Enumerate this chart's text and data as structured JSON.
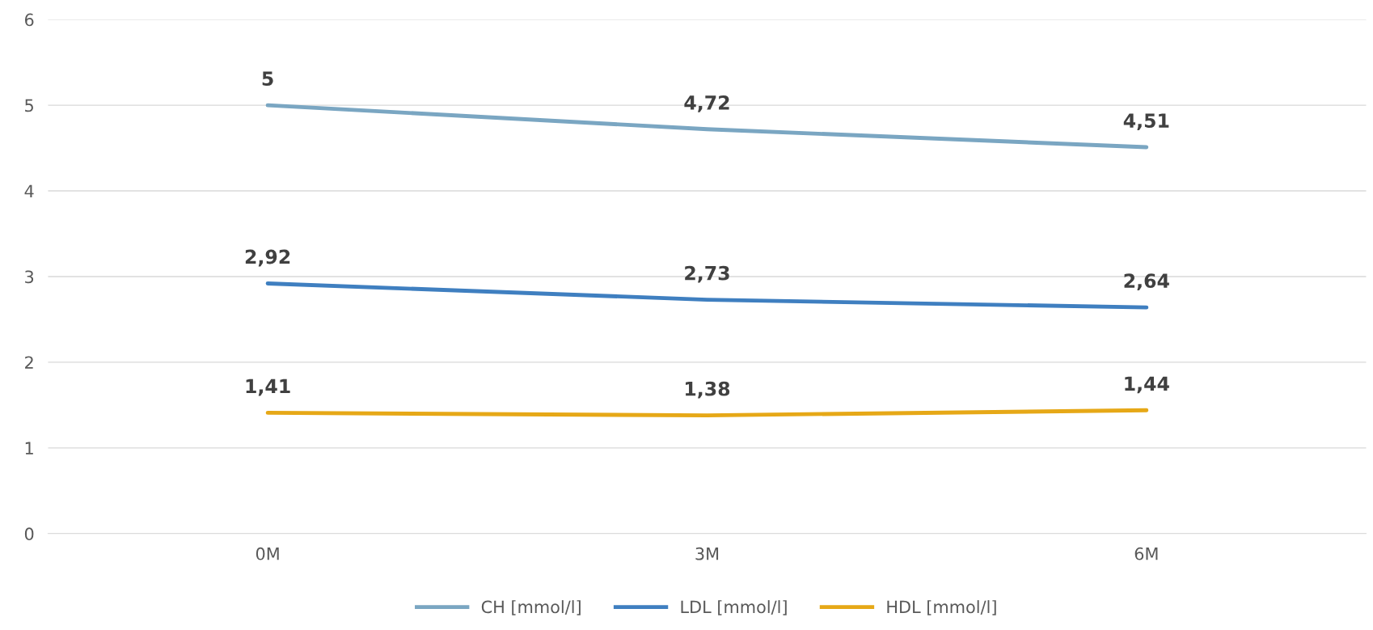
{
  "chart_data": {
    "type": "line",
    "categories": [
      "0M",
      "3M",
      "6M"
    ],
    "series": [
      {
        "name": "CH [mmol/l]",
        "color": "#7aa6c2",
        "values": [
          5,
          4.72,
          4.51
        ],
        "value_labels": [
          "5",
          "4,72",
          "4,51"
        ]
      },
      {
        "name": "LDL [mmol/l]",
        "color": "#3f7fc0",
        "values": [
          2.92,
          2.73,
          2.64
        ],
        "value_labels": [
          "2,92",
          "2,73",
          "2,64"
        ]
      },
      {
        "name": "HDL [mmol/l]",
        "color": "#e6a817",
        "values": [
          1.41,
          1.38,
          1.44
        ],
        "value_labels": [
          "1,41",
          "1,38",
          "1,44"
        ]
      }
    ],
    "ylim": [
      0,
      6
    ],
    "yticks": [
      0,
      1,
      2,
      3,
      4,
      5,
      6
    ],
    "grid": "y",
    "legend": "bottom",
    "marker": "none",
    "line_style": "solid"
  }
}
